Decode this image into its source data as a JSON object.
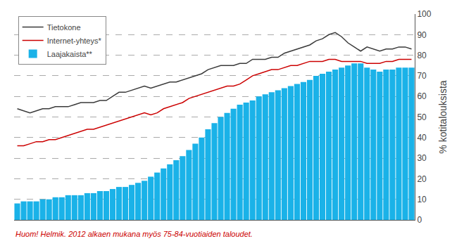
{
  "chart_data": {
    "type": "bar",
    "ylabel": "% kotitalouksista",
    "annotations": [
      {
        "text": "Huom! Helmik. 2012 alkaen mukana myös 75-84-vuotiaiden taloudet.",
        "color": "#cc0000"
      }
    ],
    "categories": [
      null,
      null,
      null,
      null,
      null,
      null,
      null,
      null,
      null,
      null,
      null,
      null,
      null,
      null,
      null,
      null,
      null,
      null,
      null,
      null,
      null,
      null,
      null,
      null,
      null,
      null,
      null,
      null,
      null,
      null,
      null,
      null,
      null,
      null,
      null,
      null,
      null,
      null,
      null,
      null,
      null,
      null,
      null,
      null,
      null,
      null,
      null,
      null,
      null,
      null,
      null,
      null,
      null,
      null,
      null,
      null,
      null,
      null,
      null,
      null,
      null,
      null,
      null
    ],
    "series": [
      {
        "name": "Tietokone",
        "type": "line",
        "color": "#3a3a3a",
        "values": [
          54,
          53,
          52,
          53,
          54,
          54,
          55,
          55,
          55,
          56,
          57,
          57,
          57,
          58,
          58,
          60,
          62,
          62,
          63,
          64,
          65,
          64,
          65,
          66,
          67,
          67,
          68,
          69,
          70,
          71,
          73,
          74,
          75,
          75,
          75,
          76,
          76,
          78,
          78,
          78,
          79,
          79,
          81,
          82,
          83,
          84,
          85,
          87,
          88,
          90,
          91,
          89,
          86,
          84,
          82,
          84,
          83,
          82,
          83,
          83,
          84,
          84,
          83
        ]
      },
      {
        "name": "Internet-yhteys*",
        "type": "line",
        "color": "#cc0000",
        "values": [
          36,
          36,
          37,
          38,
          38,
          39,
          39,
          40,
          41,
          42,
          43,
          44,
          44,
          45,
          46,
          47,
          48,
          49,
          50,
          51,
          52,
          51,
          52,
          54,
          55,
          56,
          57,
          59,
          60,
          61,
          62,
          63,
          64,
          65,
          65,
          66,
          68,
          70,
          71,
          72,
          73,
          73,
          74,
          75,
          75,
          76,
          77,
          77,
          77,
          78,
          78,
          77,
          77,
          77,
          77,
          76,
          76,
          76,
          77,
          77,
          78,
          78,
          78
        ]
      },
      {
        "name": "Laajakaista**",
        "type": "bar",
        "color": "#1ab2e8",
        "values": [
          8,
          9,
          9,
          9,
          10,
          10,
          11,
          11,
          12,
          12,
          12,
          13,
          13,
          14,
          14,
          15,
          16,
          16,
          17,
          18,
          19,
          21,
          23,
          25,
          27,
          29,
          31,
          34,
          37,
          40,
          44,
          47,
          50,
          52,
          54,
          56,
          57,
          58,
          60,
          61,
          62,
          63,
          64,
          65,
          66,
          67,
          68,
          70,
          71,
          72,
          73,
          74,
          75,
          76,
          76,
          74,
          73,
          72,
          73,
          73,
          74,
          74,
          74
        ]
      }
    ],
    "ylim": [
      0,
      100
    ],
    "yticks": [
      0,
      10,
      20,
      30,
      40,
      50,
      60,
      70,
      80,
      90,
      100
    ],
    "grid": true,
    "legend": "upper left",
    "tick_labels": "y"
  }
}
